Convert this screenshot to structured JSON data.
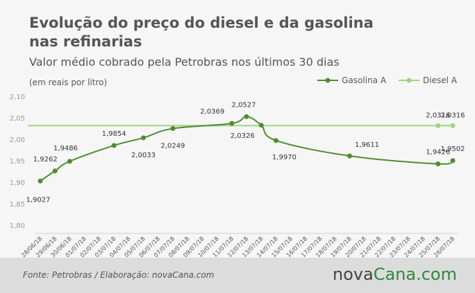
{
  "title_line1": "Evolução do preço do diesel e da gasolina",
  "title_line2": "nas refinarias",
  "subtitle": "Valor médio cobrado pela Petrobras nos últimos 30 dias",
  "unit": "(em reais por litro)",
  "footer": {
    "source": "Fonte: Petrobras / Elaboração: novaCana.com",
    "logo_part1": "nova",
    "logo_part2": "Cana.com"
  },
  "colors": {
    "gasolina": "#4e8c2e",
    "diesel": "#9fd47e",
    "logo_green": "#2e8b3a"
  },
  "chart_data": {
    "type": "line",
    "categories": [
      "28/06/18",
      "29/06/18",
      "30/06/18",
      "01/07/18",
      "02/07/18",
      "03/07/18",
      "04/07/18",
      "05/07/18",
      "06/07/18",
      "07/07/18",
      "08/07/18",
      "09/07/18",
      "10/07/18",
      "11/07/18",
      "12/07/18",
      "13/07/18",
      "14/07/18",
      "15/07/18",
      "16/07/18",
      "17/07/18",
      "18/07/18",
      "19/07/18",
      "20/07/18",
      "21/07/18",
      "22/07/18",
      "23/07/18",
      "24/07/18",
      "25/07/18",
      "26/07/18"
    ],
    "y_ticks": [
      "1,80",
      "1,85",
      "1,90",
      "1,95",
      "2,00",
      "2,05",
      "2,10"
    ],
    "ylim": [
      1.8,
      2.1
    ],
    "grid": false,
    "legend_position": "top-right",
    "series": [
      {
        "name": "Gasolina A",
        "points": [
          {
            "x": "28/06/18",
            "y": 1.9027,
            "label": "1,9027"
          },
          {
            "x": "29/06/18",
            "y": 1.9262,
            "label": "1,9262"
          },
          {
            "x": "30/06/18",
            "y": 1.9486,
            "label": "1,9486"
          },
          {
            "x": "03/07/18",
            "y": 1.9854,
            "label": "1,9854"
          },
          {
            "x": "05/07/18",
            "y": 2.0033,
            "label": "2,0033"
          },
          {
            "x": "07/07/18",
            "y": 2.0249,
            "label": "2,0249"
          },
          {
            "x": "11/07/18",
            "y": 2.0369,
            "label": "2,0369"
          },
          {
            "x": "12/07/18",
            "y": 2.0527,
            "label": "2,0527"
          },
          {
            "x": "13/07/18",
            "y": 2.0326,
            "label": "2,0326"
          },
          {
            "x": "14/07/18",
            "y": 1.997,
            "label": "1,9970"
          },
          {
            "x": "19/07/18",
            "y": 1.9611,
            "label": "1,9611"
          },
          {
            "x": "25/07/18",
            "y": 1.9426,
            "label": "1,9426"
          },
          {
            "x": "26/07/18",
            "y": 1.9502,
            "label": "1,9502"
          }
        ]
      },
      {
        "name": "Diesel A",
        "points": [
          {
            "x": "28/06/18",
            "y": 2.0316,
            "label": ""
          },
          {
            "x": "25/07/18",
            "y": 2.0316,
            "label": "2,0316"
          },
          {
            "x": "26/07/18",
            "y": 2.0316,
            "label": "2,0316"
          }
        ]
      }
    ]
  }
}
